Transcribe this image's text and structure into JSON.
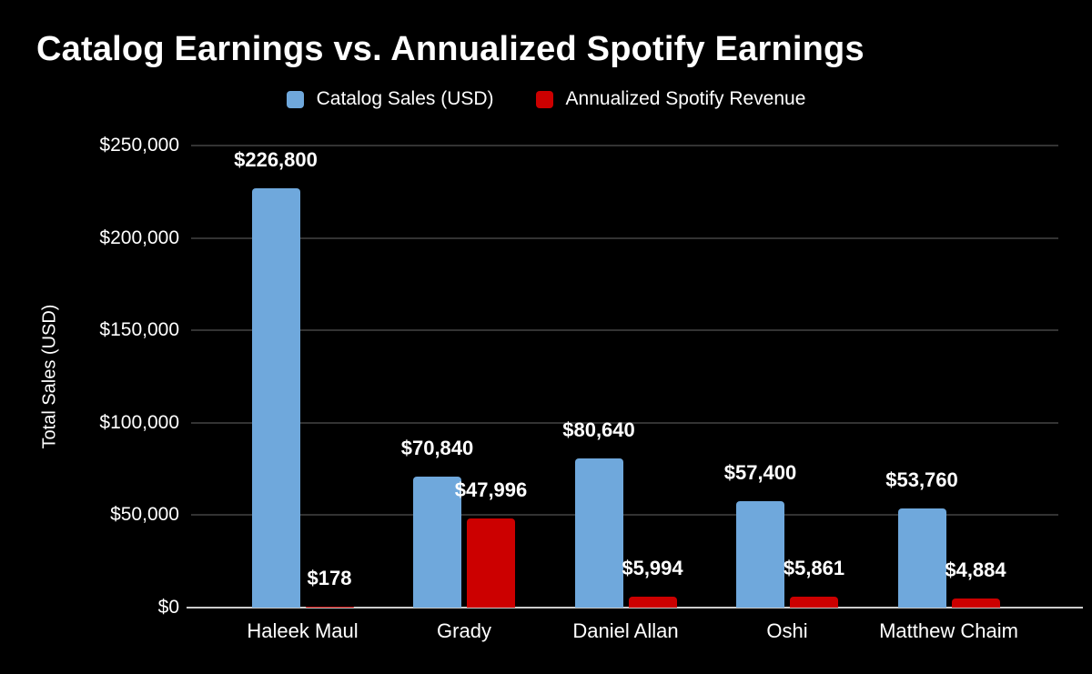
{
  "title": "Catalog Earnings vs. Annualized Spotify Earnings",
  "colors": {
    "background": "#000000",
    "text": "#ffffff",
    "gridline": "#333333",
    "axis_line": "#cccccc",
    "catalog_blue": "#6fa8dc",
    "spotify_red": "#cc0000"
  },
  "chart_data": {
    "type": "bar",
    "title": "Catalog Earnings vs. Annualized Spotify Earnings",
    "xlabel": "",
    "ylabel": "Total Sales (USD)",
    "ylim": [
      0,
      250000
    ],
    "grid": true,
    "legend_position": "top",
    "categories": [
      "Haleek Maul",
      "Grady",
      "Daniel Allan",
      "Oshi",
      "Matthew Chaim"
    ],
    "series": [
      {
        "name": "Catalog Sales (USD)",
        "color": "#6fa8dc",
        "values": [
          226800,
          70840,
          80640,
          57400,
          53760
        ],
        "labels": [
          "$226,800",
          "$70,840",
          "$80,640",
          "$57,400",
          "$53,760"
        ]
      },
      {
        "name": "Annualized Spotify Revenue",
        "color": "#cc0000",
        "values": [
          178,
          47996,
          5994,
          5861,
          4884
        ],
        "labels": [
          "$178",
          "$47,996",
          "$5,994",
          "$5,861",
          "$4,884"
        ]
      }
    ],
    "y_ticks": {
      "values": [
        0,
        50000,
        100000,
        150000,
        200000,
        250000
      ],
      "labels": [
        "$0",
        "$50,000",
        "$100,000",
        "$150,000",
        "$200,000",
        "$250,000"
      ]
    }
  }
}
